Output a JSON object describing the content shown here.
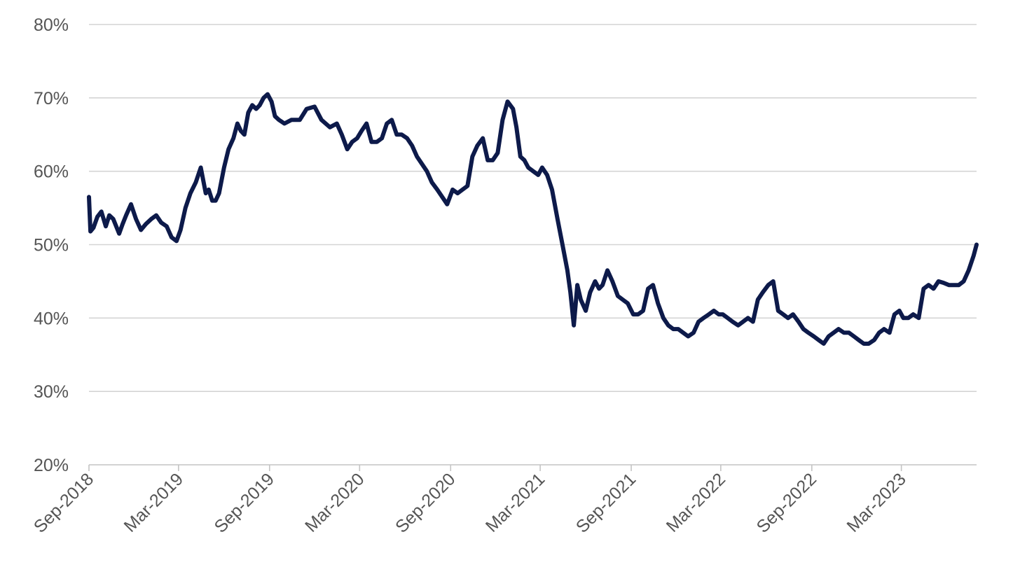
{
  "chart_data": {
    "type": "line",
    "title": "",
    "xlabel": "",
    "ylabel": "",
    "ylim": [
      20,
      80
    ],
    "xlim": [
      "2018-09-01",
      "2023-07-31"
    ],
    "y_ticks": [
      20,
      30,
      40,
      50,
      60,
      70,
      80
    ],
    "y_tick_labels": [
      "20%",
      "30%",
      "40%",
      "50%",
      "60%",
      "70%",
      "80%"
    ],
    "x_tick_dates": [
      "2018-09-01",
      "2019-03-01",
      "2019-09-01",
      "2020-03-01",
      "2020-09-01",
      "2021-03-01",
      "2021-09-01",
      "2022-03-01",
      "2022-09-01",
      "2023-03-01"
    ],
    "x_tick_labels": [
      "Sep-2018",
      "Mar-2019",
      "Sep-2019",
      "Mar-2020",
      "Sep-2020",
      "Mar-2021",
      "Sep-2021",
      "Mar-2022",
      "Sep-2022",
      "Mar-2023"
    ],
    "grid": true,
    "series": [
      {
        "color": "#0d1a4a",
        "x": [
          "2018-09-01",
          "2018-09-04",
          "2018-09-10",
          "2018-09-18",
          "2018-09-26",
          "2018-10-05",
          "2018-10-12",
          "2018-10-20",
          "2018-11-01",
          "2018-11-08",
          "2018-11-15",
          "2018-11-25",
          "2018-12-05",
          "2018-12-15",
          "2018-12-25",
          "2019-01-05",
          "2019-01-15",
          "2019-01-25",
          "2019-02-05",
          "2019-02-15",
          "2019-02-25",
          "2019-03-05",
          "2019-03-15",
          "2019-03-25",
          "2019-04-05",
          "2019-04-15",
          "2019-04-25",
          "2019-05-01",
          "2019-05-08",
          "2019-05-15",
          "2019-05-22",
          "2019-06-01",
          "2019-06-10",
          "2019-06-20",
          "2019-06-28",
          "2019-07-05",
          "2019-07-12",
          "2019-07-20",
          "2019-07-28",
          "2019-08-05",
          "2019-08-12",
          "2019-08-20",
          "2019-08-28",
          "2019-09-05",
          "2019-09-12",
          "2019-09-20",
          "2019-10-01",
          "2019-10-15",
          "2019-11-01",
          "2019-11-15",
          "2019-12-01",
          "2019-12-15",
          "2020-01-01",
          "2020-01-15",
          "2020-01-25",
          "2020-02-05",
          "2020-02-15",
          "2020-02-25",
          "2020-03-05",
          "2020-03-15",
          "2020-03-25",
          "2020-04-05",
          "2020-04-15",
          "2020-04-25",
          "2020-05-05",
          "2020-05-15",
          "2020-05-25",
          "2020-06-05",
          "2020-06-15",
          "2020-06-25",
          "2020-07-05",
          "2020-07-15",
          "2020-07-25",
          "2020-08-05",
          "2020-08-15",
          "2020-08-25",
          "2020-09-05",
          "2020-09-15",
          "2020-09-25",
          "2020-10-05",
          "2020-10-15",
          "2020-10-25",
          "2020-11-05",
          "2020-11-15",
          "2020-11-25",
          "2020-12-05",
          "2020-12-15",
          "2020-12-25",
          "2021-01-05",
          "2021-01-12",
          "2021-01-20",
          "2021-01-28",
          "2021-02-05",
          "2021-02-15",
          "2021-02-25",
          "2021-03-05",
          "2021-03-15",
          "2021-03-25",
          "2021-04-05",
          "2021-04-15",
          "2021-04-25",
          "2021-05-01",
          "2021-05-08",
          "2021-05-15",
          "2021-05-22",
          "2021-06-01",
          "2021-06-10",
          "2021-06-20",
          "2021-06-28",
          "2021-07-05",
          "2021-07-15",
          "2021-07-25",
          "2021-08-05",
          "2021-08-15",
          "2021-08-25",
          "2021-09-05",
          "2021-09-15",
          "2021-09-25",
          "2021-10-05",
          "2021-10-15",
          "2021-10-25",
          "2021-11-05",
          "2021-11-15",
          "2021-11-25",
          "2021-12-05",
          "2021-12-15",
          "2021-12-25",
          "2022-01-05",
          "2022-01-15",
          "2022-01-25",
          "2022-02-05",
          "2022-02-15",
          "2022-02-25",
          "2022-03-05",
          "2022-03-15",
          "2022-03-25",
          "2022-04-05",
          "2022-04-15",
          "2022-04-25",
          "2022-05-05",
          "2022-05-15",
          "2022-05-25",
          "2022-06-05",
          "2022-06-15",
          "2022-06-25",
          "2022-07-05",
          "2022-07-15",
          "2022-07-25",
          "2022-08-05",
          "2022-08-15",
          "2022-08-25",
          "2022-09-05",
          "2022-09-15",
          "2022-09-25",
          "2022-10-05",
          "2022-10-15",
          "2022-10-25",
          "2022-11-05",
          "2022-11-15",
          "2022-11-25",
          "2022-12-05",
          "2022-12-15",
          "2022-12-25",
          "2023-01-05",
          "2023-01-15",
          "2023-01-25",
          "2023-02-05",
          "2023-02-15",
          "2023-02-25",
          "2023-03-05",
          "2023-03-15",
          "2023-03-25",
          "2023-04-05",
          "2023-04-15",
          "2023-04-25",
          "2023-05-05",
          "2023-05-15",
          "2023-05-25",
          "2023-06-05",
          "2023-06-15",
          "2023-06-25",
          "2023-07-05",
          "2023-07-15",
          "2023-07-25",
          "2023-07-31"
        ],
        "values": [
          56.5,
          51.8,
          52.3,
          53.8,
          54.5,
          52.5,
          54.0,
          53.5,
          51.5,
          52.8,
          54.0,
          55.5,
          53.5,
          52.0,
          52.8,
          53.5,
          54.0,
          53.0,
          52.5,
          51.0,
          50.5,
          52.0,
          55.0,
          57.0,
          58.5,
          60.5,
          57.0,
          57.5,
          56.0,
          56.0,
          57.0,
          60.5,
          63.0,
          64.5,
          66.5,
          65.5,
          65.0,
          68.0,
          69.0,
          68.5,
          69.0,
          70.0,
          70.5,
          69.5,
          67.5,
          67.0,
          66.5,
          67.0,
          67.0,
          68.5,
          68.8,
          67.0,
          66.0,
          66.5,
          65.0,
          63.0,
          64.0,
          64.5,
          65.5,
          66.5,
          64.0,
          64.0,
          64.5,
          66.5,
          67.0,
          65.0,
          65.0,
          64.5,
          63.5,
          62.0,
          61.0,
          60.0,
          58.5,
          57.5,
          56.5,
          55.5,
          57.5,
          57.0,
          57.5,
          58.0,
          62.0,
          63.5,
          64.5,
          61.5,
          61.5,
          62.5,
          67.0,
          69.5,
          68.5,
          66.0,
          62.0,
          61.5,
          60.5,
          60.0,
          59.5,
          60.5,
          59.5,
          57.5,
          53.5,
          50.0,
          46.5,
          43.5,
          39.0,
          44.5,
          42.5,
          41.0,
          43.5,
          45.0,
          44.0,
          44.5,
          46.5,
          45.0,
          43.0,
          42.5,
          42.0,
          40.5,
          40.5,
          41.0,
          44.0,
          44.5,
          42.0,
          40.0,
          39.0,
          38.5,
          38.5,
          38.0,
          37.5,
          38.0,
          39.5,
          40.0,
          40.5,
          41.0,
          40.5,
          40.5,
          40.0,
          39.5,
          39.0,
          39.5,
          40.0,
          39.5,
          42.5,
          43.5,
          44.5,
          45.0,
          41.0,
          40.5,
          40.0,
          40.5,
          39.5,
          38.5,
          38.0,
          37.5,
          37.0,
          36.5,
          37.5,
          38.0,
          38.5,
          38.0,
          38.0,
          37.5,
          37.0,
          36.5,
          36.5,
          37.0,
          38.0,
          38.5,
          38.0,
          40.5,
          41.0,
          40.0,
          40.0,
          40.5,
          40.0,
          44.0,
          44.5,
          44.0,
          45.0,
          44.8,
          44.5,
          44.5,
          44.5,
          45.0,
          46.5,
          48.5,
          50.0
        ]
      }
    ]
  }
}
